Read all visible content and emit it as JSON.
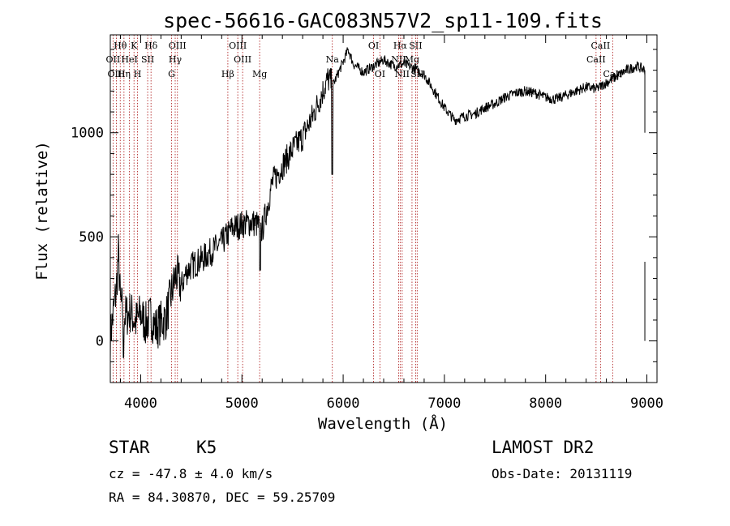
{
  "chart_data": {
    "type": "line",
    "title": "spec-56616-GAC083N57V2_sp11-109.fits",
    "xlabel": "Wavelength (Å)",
    "ylabel": "Flux (relative)",
    "xlim": [
      3700,
      9100
    ],
    "ylim": [
      -200,
      1470
    ],
    "xticks": [
      4000,
      5000,
      6000,
      7000,
      8000,
      9000
    ],
    "yticks": [
      0,
      500,
      1000
    ],
    "grid": false,
    "line_color": "#000000",
    "marker_color": "#aa1111",
    "spectral_lines": [
      {
        "label": "Hθ",
        "x": 3798,
        "row": 1
      },
      {
        "label": "OII",
        "x": 3727,
        "row": 2
      },
      {
        "label": "OIII",
        "x": 3760,
        "row": 3
      },
      {
        "label": "K",
        "x": 3934,
        "row": 1
      },
      {
        "label": "HeI",
        "x": 3889,
        "row": 2
      },
      {
        "label": "Hη",
        "x": 3835,
        "row": 3
      },
      {
        "label": "Hδ",
        "x": 4102,
        "row": 1
      },
      {
        "label": "SII",
        "x": 4069,
        "row": 2
      },
      {
        "label": "H",
        "x": 3969,
        "row": 3
      },
      {
        "label": "OIII",
        "x": 4363,
        "row": 1
      },
      {
        "label": "Hγ",
        "x": 4341,
        "row": 2
      },
      {
        "label": "G",
        "x": 4305,
        "row": 3
      },
      {
        "label": "OIII",
        "x": 4959,
        "row": 1
      },
      {
        "label": "OIII",
        "x": 5007,
        "row": 2
      },
      {
        "label": "Hβ",
        "x": 4861,
        "row": 3
      },
      {
        "label": "Mg",
        "x": 5175,
        "row": 3
      },
      {
        "label": "Na",
        "x": 5893,
        "row": 2
      },
      {
        "label": "OI",
        "x": 6300,
        "row": 1
      },
      {
        "label": "OI",
        "x": 6363,
        "row": 3
      },
      {
        "label": "Hα",
        "x": 6563,
        "row": 1
      },
      {
        "label": "NII",
        "x": 6548,
        "row": 2
      },
      {
        "label": "NII",
        "x": 6583,
        "row": 3
      },
      {
        "label": "SII",
        "x": 6716,
        "row": 1
      },
      {
        "label": "Mg",
        "x": 6680,
        "row": 2
      },
      {
        "label": "SII",
        "x": 6731,
        "row": 3
      },
      {
        "label": "CaII",
        "x": 8542,
        "row": 1
      },
      {
        "label": "CaII",
        "x": 8498,
        "row": 2
      },
      {
        "label": "CaII",
        "x": 8662,
        "row": 3
      }
    ],
    "spectrum_anchors": [
      [
        3700,
        20
      ],
      [
        3760,
        250
      ],
      [
        3780,
        420
      ],
      [
        3800,
        180
      ],
      [
        3850,
        120
      ],
      [
        3900,
        140
      ],
      [
        3950,
        90
      ],
      [
        4000,
        130
      ],
      [
        4050,
        80
      ],
      [
        4100,
        120
      ],
      [
        4150,
        60
      ],
      [
        4200,
        90
      ],
      [
        4250,
        110
      ],
      [
        4300,
        220
      ],
      [
        4350,
        320
      ],
      [
        4400,
        260
      ],
      [
        4450,
        330
      ],
      [
        4500,
        360
      ],
      [
        4600,
        390
      ],
      [
        4700,
        430
      ],
      [
        4800,
        470
      ],
      [
        4900,
        540
      ],
      [
        5000,
        560
      ],
      [
        5100,
        570
      ],
      [
        5150,
        560
      ],
      [
        5200,
        530
      ],
      [
        5300,
        760
      ],
      [
        5400,
        840
      ],
      [
        5500,
        920
      ],
      [
        5600,
        980
      ],
      [
        5700,
        1080
      ],
      [
        5800,
        1200
      ],
      [
        5850,
        1260
      ],
      [
        5900,
        1230
      ],
      [
        6000,
        1340
      ],
      [
        6050,
        1400
      ],
      [
        6100,
        1330
      ],
      [
        6200,
        1290
      ],
      [
        6300,
        1320
      ],
      [
        6400,
        1350
      ],
      [
        6500,
        1320
      ],
      [
        6600,
        1330
      ],
      [
        6700,
        1310
      ],
      [
        6800,
        1280
      ],
      [
        6900,
        1200
      ],
      [
        7000,
        1120
      ],
      [
        7100,
        1060
      ],
      [
        7200,
        1080
      ],
      [
        7300,
        1090
      ],
      [
        7400,
        1120
      ],
      [
        7500,
        1140
      ],
      [
        7600,
        1170
      ],
      [
        7700,
        1190
      ],
      [
        7800,
        1200
      ],
      [
        7900,
        1190
      ],
      [
        8000,
        1170
      ],
      [
        8100,
        1160
      ],
      [
        8200,
        1180
      ],
      [
        8300,
        1200
      ],
      [
        8400,
        1220
      ],
      [
        8500,
        1210
      ],
      [
        8600,
        1240
      ],
      [
        8700,
        1270
      ],
      [
        8800,
        1300
      ],
      [
        8900,
        1320
      ],
      [
        8980,
        1300
      ]
    ],
    "absorption_dips": [
      {
        "x": 5893,
        "y": 800
      },
      {
        "x": 3830,
        "y": -80
      },
      {
        "x": 5180,
        "y": 340
      }
    ]
  },
  "info": {
    "object_class": "STAR",
    "subclass": "K5",
    "survey": "LAMOST DR2",
    "cz": "cz = -47.8 ± 4.0 km/s",
    "obs_date": "Obs-Date: 20131119",
    "coords": "RA =  84.30870, DEC =  59.25709"
  }
}
